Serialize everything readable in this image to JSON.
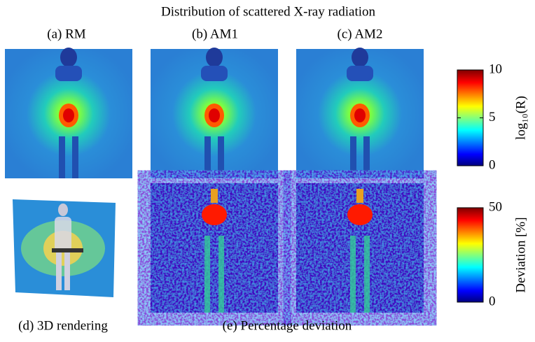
{
  "title": "Distribution of scattered X-ray radiation",
  "panels": [
    {
      "label": "(a) RM"
    },
    {
      "label": "(b) AM1"
    },
    {
      "label": "(c) AM2"
    }
  ],
  "captions": [
    "(d) 3D rendering",
    "(e) Percentage deviation"
  ],
  "colorbars": [
    {
      "label": "log₁₀(R)",
      "range": [
        0,
        10
      ],
      "ticks": [
        0,
        5,
        10
      ]
    },
    {
      "label": "Deviation [%]",
      "range": [
        0,
        50
      ],
      "ticks": [
        0,
        50
      ]
    }
  ]
}
